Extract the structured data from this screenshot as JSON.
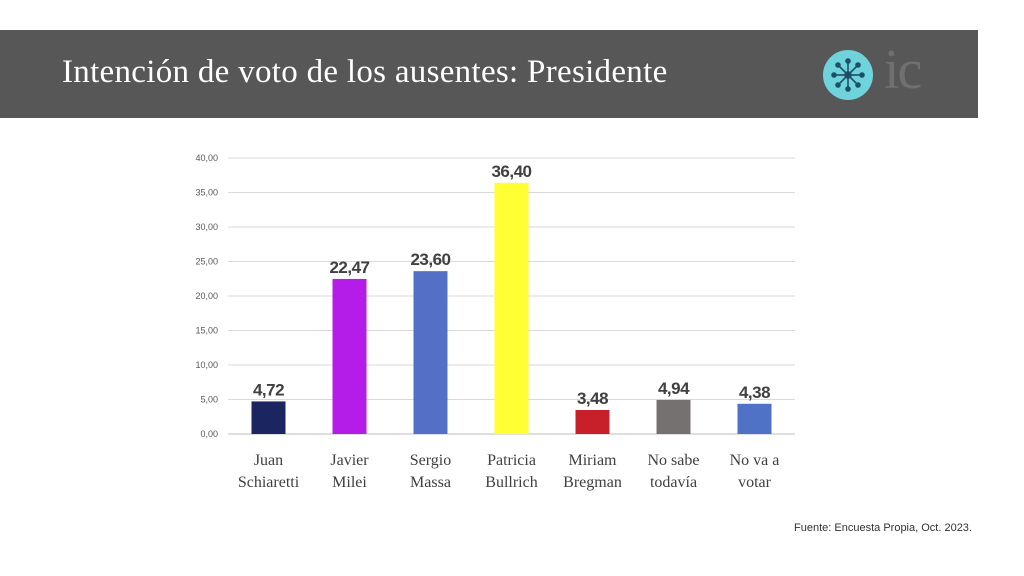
{
  "header": {
    "title": "Intención de voto de los ausentes: Presidente",
    "background": "#575757",
    "logo_text": "ic",
    "logo_icon": "network-circle-icon",
    "logo_color": "#6fd3dc"
  },
  "source": "Fuente: Encuesta Propia, Oct. 2023.",
  "chart_data": {
    "type": "bar",
    "title": "",
    "xlabel": "",
    "ylabel": "",
    "ylim": [
      0,
      40
    ],
    "yticks": [
      "0,00",
      "5,00",
      "10,00",
      "15,00",
      "20,00",
      "25,00",
      "30,00",
      "35,00",
      "40,00"
    ],
    "grid": true,
    "categories": [
      [
        "Juan",
        "Schiaretti"
      ],
      [
        "Javier",
        "Milei"
      ],
      [
        "Sergio",
        "Massa"
      ],
      [
        "Patricia",
        "Bullrich"
      ],
      [
        "Miriam",
        "Bregman"
      ],
      [
        "No sabe",
        "todavía"
      ],
      [
        "No va a",
        "votar"
      ]
    ],
    "values": [
      4.72,
      22.47,
      23.6,
      36.4,
      3.48,
      4.94,
      4.38
    ],
    "value_labels": [
      "4,72",
      "22,47",
      "23,60",
      "36,40",
      "3,48",
      "4,94",
      "4,38"
    ],
    "colors": [
      "#1b2560",
      "#b41de8",
      "#5470c6",
      "#ffff33",
      "#c8202a",
      "#767171",
      "#4f72c6"
    ]
  }
}
